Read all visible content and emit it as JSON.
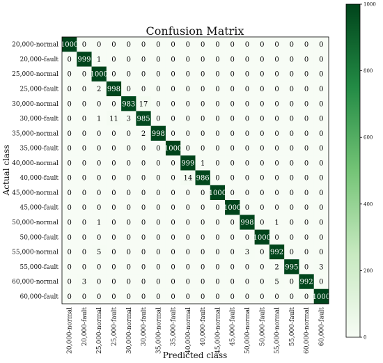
{
  "chart_data": {
    "type": "heatmap",
    "title": "Confusion Matrix",
    "xlabel": "Predicted class",
    "ylabel": "Actual class",
    "classes": [
      "20,000-normal",
      "20,000-fault",
      "25,000-normal",
      "25,000-fault",
      "30,000-normal",
      "30,000-fault",
      "35,000-normal",
      "35,000-fault",
      "40,000-normal",
      "40,000-fault",
      "45,000-normal",
      "45,000-fault",
      "50,000-normal",
      "50,000-fault",
      "55,000-normal",
      "55,000-fault",
      "60,000-normal",
      "60,000-fault"
    ],
    "matrix": [
      [
        1000,
        0,
        0,
        0,
        0,
        0,
        0,
        0,
        0,
        0,
        0,
        0,
        0,
        0,
        0,
        0,
        0,
        0
      ],
      [
        0,
        999,
        1,
        0,
        0,
        0,
        0,
        0,
        0,
        0,
        0,
        0,
        0,
        0,
        0,
        0,
        0,
        0
      ],
      [
        0,
        0,
        1000,
        0,
        0,
        0,
        0,
        0,
        0,
        0,
        0,
        0,
        0,
        0,
        0,
        0,
        0,
        0
      ],
      [
        0,
        0,
        2,
        998,
        0,
        0,
        0,
        0,
        0,
        0,
        0,
        0,
        0,
        0,
        0,
        0,
        0,
        0
      ],
      [
        0,
        0,
        0,
        0,
        983,
        17,
        0,
        0,
        0,
        0,
        0,
        0,
        0,
        0,
        0,
        0,
        0,
        0
      ],
      [
        0,
        0,
        1,
        11,
        3,
        985,
        0,
        0,
        0,
        0,
        0,
        0,
        0,
        0,
        0,
        0,
        0,
        0
      ],
      [
        0,
        0,
        0,
        0,
        0,
        2,
        998,
        0,
        0,
        0,
        0,
        0,
        0,
        0,
        0,
        0,
        0,
        0
      ],
      [
        0,
        0,
        0,
        0,
        0,
        0,
        0,
        1000,
        0,
        0,
        0,
        0,
        0,
        0,
        0,
        0,
        0,
        0
      ],
      [
        0,
        0,
        0,
        0,
        0,
        0,
        0,
        0,
        999,
        1,
        0,
        0,
        0,
        0,
        0,
        0,
        0,
        0
      ],
      [
        0,
        0,
        0,
        0,
        0,
        0,
        0,
        0,
        14,
        986,
        0,
        0,
        0,
        0,
        0,
        0,
        0,
        0
      ],
      [
        0,
        0,
        0,
        0,
        0,
        0,
        0,
        0,
        0,
        0,
        1000,
        0,
        0,
        0,
        0,
        0,
        0,
        0
      ],
      [
        0,
        0,
        0,
        0,
        0,
        0,
        0,
        0,
        0,
        0,
        0,
        1000,
        0,
        0,
        0,
        0,
        0,
        0
      ],
      [
        0,
        0,
        1,
        0,
        0,
        0,
        0,
        0,
        0,
        0,
        0,
        0,
        998,
        0,
        1,
        0,
        0,
        0
      ],
      [
        0,
        0,
        0,
        0,
        0,
        0,
        0,
        0,
        0,
        0,
        0,
        0,
        0,
        1000,
        0,
        0,
        0,
        0
      ],
      [
        0,
        0,
        5,
        0,
        0,
        0,
        0,
        0,
        0,
        0,
        0,
        0,
        3,
        0,
        992,
        0,
        0,
        0
      ],
      [
        0,
        0,
        0,
        0,
        0,
        0,
        0,
        0,
        0,
        0,
        0,
        0,
        0,
        0,
        2,
        995,
        0,
        3
      ],
      [
        0,
        3,
        0,
        0,
        0,
        0,
        0,
        0,
        0,
        0,
        0,
        0,
        0,
        0,
        5,
        0,
        992,
        0
      ],
      [
        0,
        0,
        0,
        0,
        0,
        0,
        0,
        0,
        0,
        0,
        0,
        0,
        0,
        0,
        0,
        0,
        0,
        1000
      ]
    ],
    "colorbar": {
      "min": 0,
      "max": 1000,
      "ticks": [
        0,
        200,
        400,
        600,
        800,
        1000
      ]
    },
    "colors": {
      "low": "#f7fcf5",
      "high": "#00441b"
    }
  }
}
